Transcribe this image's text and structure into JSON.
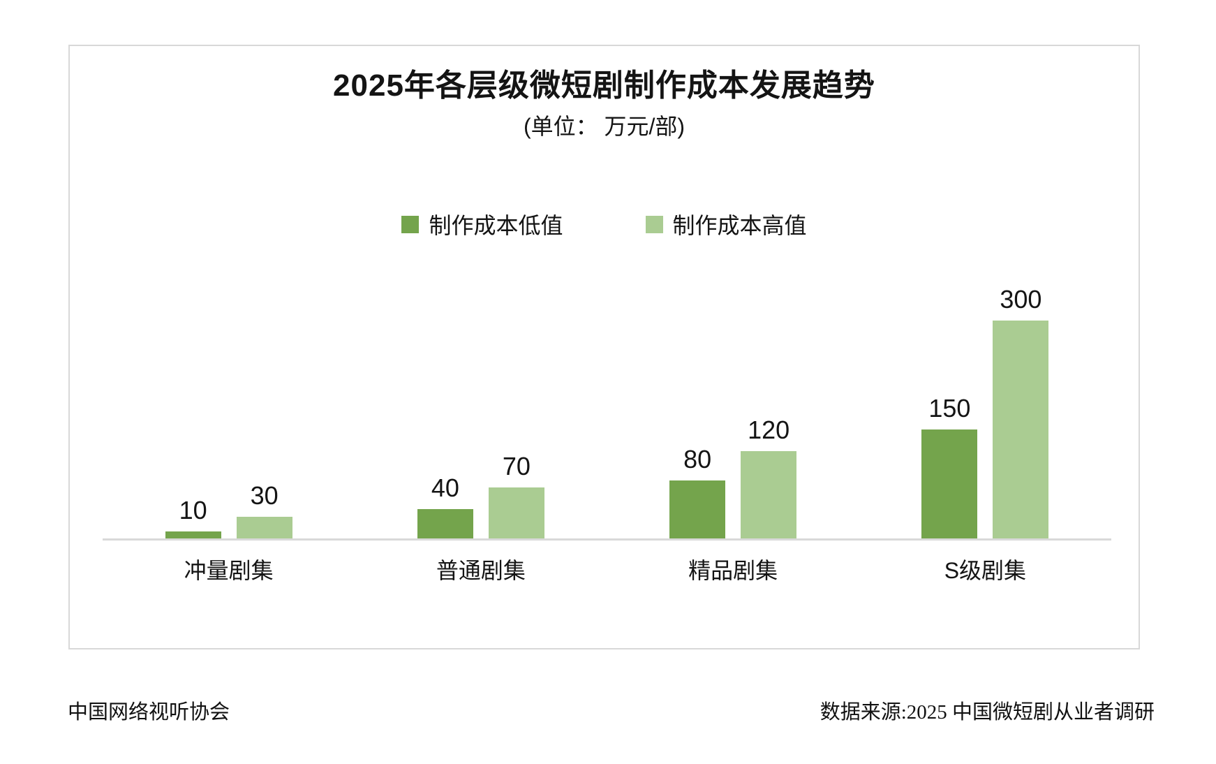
{
  "title": "2025年各层级微短剧制作成本发展趋势",
  "subtitle": "(单位： 万元/部)",
  "footer": {
    "left": "中国网络视听协会",
    "right": "数据来源:2025 中国微短剧从业者调研"
  },
  "colors": {
    "series_low": "#74A44C",
    "series_high": "#AACC92",
    "axis_line": "#D9D9D9",
    "box_border": "#D8D8D8",
    "text": "#141414"
  },
  "chart_data": {
    "type": "bar",
    "title": "2025年各层级微短剧制作成本发展趋势",
    "unit_label": "(单位： 万元/部)",
    "categories": [
      "冲量剧集",
      "普通剧集",
      "精品剧集",
      "S级剧集"
    ],
    "series": [
      {
        "name": "制作成本低值",
        "color": "#74A44C",
        "values": [
          10,
          40,
          80,
          150
        ]
      },
      {
        "name": "制作成本高值",
        "color": "#AACC92",
        "values": [
          30,
          70,
          120,
          300
        ]
      }
    ],
    "ylim": [
      0,
      320
    ],
    "grid": false,
    "legend_position": "top-center",
    "data_labels": true,
    "xlabel": "",
    "ylabel": ""
  }
}
